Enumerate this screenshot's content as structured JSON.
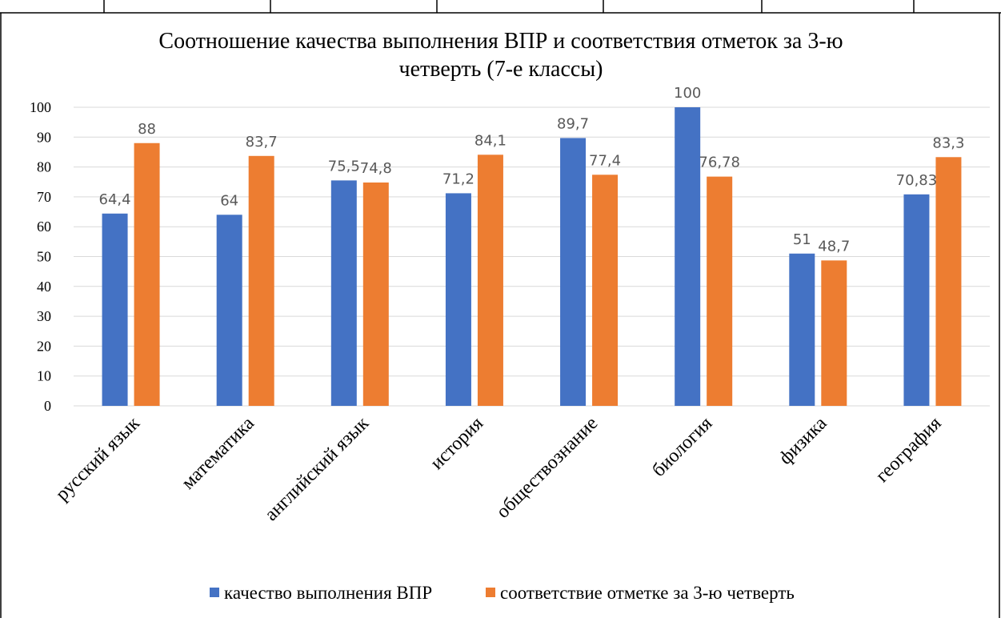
{
  "chart_data": {
    "type": "bar",
    "title_lines": [
      "Соотношение качества выполнения ВПР и соответствия отметок за 3-ю",
      "четверть (7-е классы)"
    ],
    "categories": [
      "русский язык",
      "математика",
      "английский язык",
      "история",
      "обществознание",
      "биология",
      "физика",
      "география"
    ],
    "series": [
      {
        "name": "качество выполнения ВПР",
        "color": "#4472C4",
        "values": [
          64.4,
          64,
          75.5,
          71.2,
          89.7,
          100,
          51,
          70.83
        ],
        "labels": [
          "64,4",
          "64",
          "75,5",
          "71,2",
          "89,7",
          "100",
          "51",
          "70,83"
        ]
      },
      {
        "name": "соответствие отметке за 3-ю четверть",
        "color": "#ED7D31",
        "values": [
          88,
          83.7,
          74.8,
          84.1,
          77.4,
          76.78,
          48.7,
          83.3
        ],
        "labels": [
          "88",
          "83,7",
          "74,8",
          "84,1",
          "77,4",
          "76,78",
          "48,7",
          "83,3"
        ]
      }
    ],
    "ylim": [
      0,
      100
    ],
    "yticks": [
      0,
      10,
      20,
      30,
      40,
      50,
      60,
      70,
      80,
      90,
      100
    ],
    "grid": true,
    "legend_position": "bottom"
  }
}
